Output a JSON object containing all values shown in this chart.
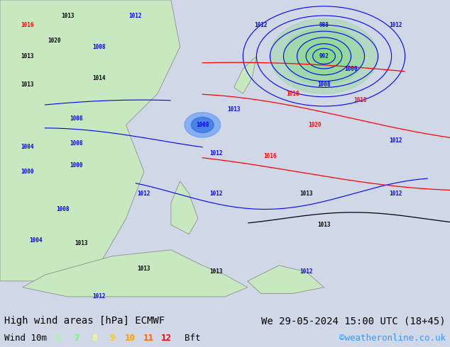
{
  "title_left": "High wind areas [hPa] ECMWF",
  "title_right": "We 29-05-2024 15:00 UTC (18+45)",
  "subtitle_left": "Wind 10m",
  "wind_labels": [
    "6",
    "7",
    "8",
    "9",
    "10",
    "11",
    "12"
  ],
  "wind_colors": [
    "#99ff99",
    "#66ff66",
    "#ffff66",
    "#ffcc00",
    "#ff9900",
    "#ff6600",
    "#ff0000"
  ],
  "wind_suffix": "Bft",
  "copyright": "©weatheronline.co.uk",
  "bg_color": "#d0d8e8",
  "map_bg": "#e8e8e8",
  "bottom_bar_color": "#ffffff",
  "title_fontsize": 10,
  "label_fontsize": 9
}
